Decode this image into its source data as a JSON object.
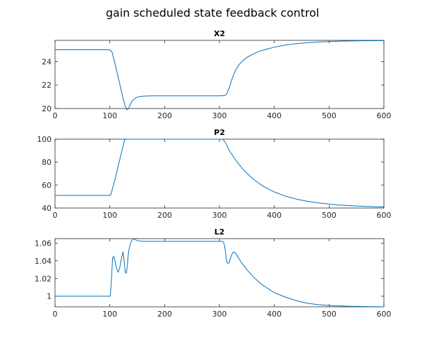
{
  "figure": {
    "title": "gain scheduled state feedback control"
  },
  "line_color": "#0072bd",
  "chart_data": [
    {
      "type": "line",
      "title": "X2",
      "xlim": [
        0,
        600
      ],
      "ylim": [
        20,
        25.8
      ],
      "xticks": [
        0,
        100,
        200,
        300,
        400,
        500,
        600
      ],
      "yticks": [
        20,
        22,
        24
      ],
      "ytick_labels": [
        "20",
        "22",
        "24"
      ],
      "grid": false,
      "series": [
        {
          "x": [
            0,
            100,
            104,
            108,
            112,
            116,
            120,
            124,
            128,
            131,
            134,
            137,
            140,
            144,
            148,
            152,
            156,
            160,
            170,
            180,
            200,
            250,
            300,
            305,
            310,
            314,
            318,
            322,
            326,
            330,
            336,
            342,
            350,
            360,
            370,
            380,
            390,
            400,
            420,
            440,
            460,
            480,
            500,
            520,
            540,
            560,
            580,
            600
          ],
          "y": [
            25.0,
            25.0,
            24.8,
            24.1,
            23.3,
            22.5,
            21.7,
            20.9,
            20.2,
            19.9,
            20.0,
            20.3,
            20.6,
            20.8,
            20.93,
            21.0,
            21.03,
            21.05,
            21.07,
            21.08,
            21.08,
            21.08,
            21.08,
            21.09,
            21.1,
            21.3,
            21.8,
            22.4,
            22.9,
            23.3,
            23.75,
            24.05,
            24.35,
            24.6,
            24.82,
            24.98,
            25.1,
            25.22,
            25.4,
            25.52,
            25.6,
            25.66,
            25.7,
            25.73,
            25.75,
            25.76,
            25.77,
            25.78
          ]
        }
      ]
    },
    {
      "type": "line",
      "title": "P2",
      "xlim": [
        0,
        600
      ],
      "ylim": [
        40,
        100
      ],
      "xticks": [
        0,
        100,
        200,
        300,
        400,
        500,
        600
      ],
      "yticks": [
        40,
        60,
        80,
        100
      ],
      "ytick_labels": [
        "40",
        "60",
        "80",
        "100"
      ],
      "grid": false,
      "series": [
        {
          "x": [
            0,
            100,
            102,
            110,
            120,
            127,
            130,
            200,
            300,
            305,
            308,
            312,
            316,
            320,
            330,
            340,
            350,
            360,
            370,
            380,
            390,
            400,
            420,
            440,
            460,
            480,
            500,
            520,
            540,
            560,
            580,
            600
          ],
          "y": [
            51,
            51,
            52,
            66,
            86,
            99.5,
            100,
            100,
            100,
            100,
            99,
            96,
            92,
            88.5,
            81.5,
            75.5,
            70.3,
            65.9,
            62.2,
            59.0,
            56.3,
            54.0,
            50.4,
            47.8,
            45.9,
            44.5,
            43.4,
            42.6,
            42.0,
            41.5,
            41.2,
            41.0
          ]
        }
      ]
    },
    {
      "type": "line",
      "title": "L2",
      "xlim": [
        0,
        600
      ],
      "ylim": [
        0.988,
        1.065
      ],
      "xticks": [
        0,
        100,
        200,
        300,
        400,
        500,
        600
      ],
      "yticks": [
        1.0,
        1.02,
        1.04,
        1.06
      ],
      "ytick_labels": [
        "1",
        "1.02",
        "1.04",
        "1.06"
      ],
      "grid": false,
      "series": [
        {
          "x": [
            0,
            100,
            101,
            103,
            105,
            107,
            109,
            112,
            115,
            118,
            121,
            124,
            126,
            128,
            130,
            132,
            134,
            136,
            138,
            140,
            143,
            146,
            149,
            152,
            156,
            160,
            170,
            200,
            250,
            300,
            305,
            307,
            309,
            311,
            313,
            315,
            318,
            321,
            324,
            327,
            330,
            333,
            336,
            340,
            350,
            360,
            370,
            380,
            390,
            400,
            420,
            440,
            460,
            480,
            500,
            520,
            540,
            560,
            580,
            600
          ],
          "y": [
            1.0,
            1.0,
            1.001,
            1.02,
            1.043,
            1.045,
            1.041,
            1.032,
            1.027,
            1.032,
            1.042,
            1.05,
            1.04,
            1.027,
            1.026,
            1.035,
            1.05,
            1.056,
            1.06,
            1.063,
            1.065,
            1.064,
            1.063,
            1.0625,
            1.0622,
            1.062,
            1.062,
            1.062,
            1.062,
            1.062,
            1.062,
            1.061,
            1.058,
            1.05,
            1.04,
            1.037,
            1.038,
            1.045,
            1.049,
            1.05,
            1.048,
            1.045,
            1.042,
            1.038,
            1.03,
            1.023,
            1.017,
            1.012,
            1.008,
            1.004,
            0.999,
            0.995,
            0.992,
            0.9905,
            0.9895,
            0.989,
            0.9886,
            0.9884,
            0.9882,
            0.988
          ]
        }
      ]
    }
  ]
}
